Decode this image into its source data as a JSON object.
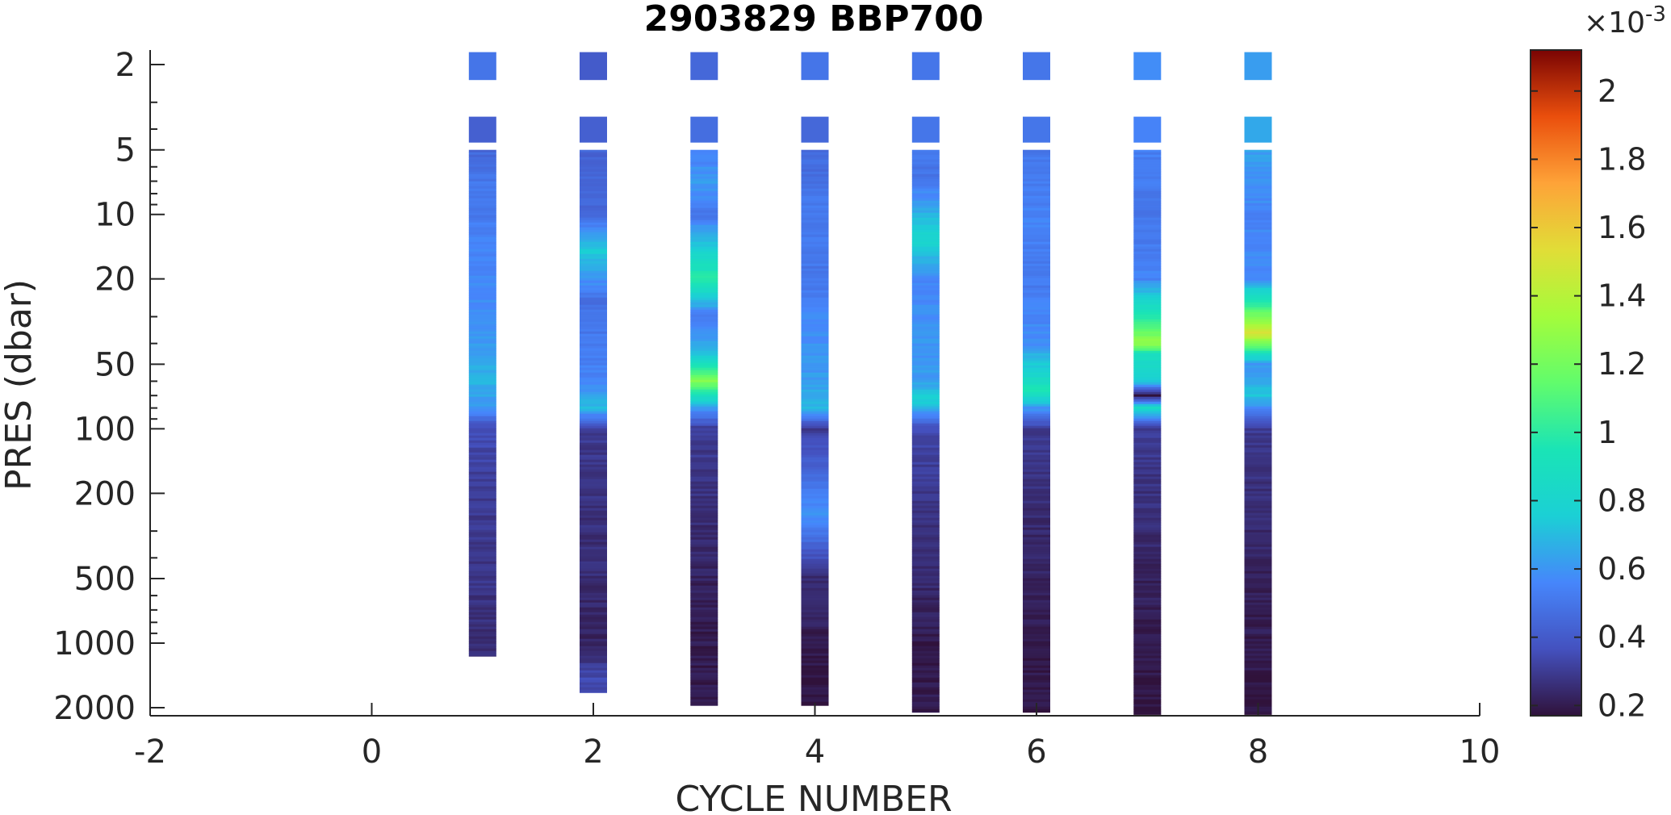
{
  "chart_data": {
    "type": "heatmap",
    "title": "2903829 BBP700",
    "xlabel": "CYCLE NUMBER",
    "ylabel": "PRES (dbar)",
    "xlim": [
      -2,
      10
    ],
    "ylim": [
      2,
      2000
    ],
    "yscale": "log",
    "yreverse": true,
    "x_ticks": [
      "-2",
      "0",
      "2",
      "4",
      "6",
      "8",
      "10"
    ],
    "y_ticks": [
      "2",
      "5",
      "10",
      "20",
      "50",
      "100",
      "200",
      "500",
      "1000",
      "2000"
    ],
    "colorbar": {
      "colormap": "turbo",
      "range": [
        0.00017,
        0.00212
      ],
      "multiplier": "×10",
      "multiplier_exp": "-3",
      "ticks": [
        "0.2",
        "0.4",
        "0.6",
        "0.8",
        "1",
        "1.2",
        "1.4",
        "1.6",
        "1.8",
        "2"
      ]
    },
    "grid": false,
    "profiles": [
      {
        "cycle": 1,
        "p_max": 1150,
        "points": [
          [
            2,
            0.5
          ],
          [
            4,
            0.42
          ],
          [
            7,
            0.5
          ],
          [
            10,
            0.52
          ],
          [
            15,
            0.55
          ],
          [
            25,
            0.58
          ],
          [
            40,
            0.62
          ],
          [
            60,
            0.68
          ],
          [
            80,
            0.6
          ],
          [
            100,
            0.35
          ],
          [
            200,
            0.3
          ],
          [
            500,
            0.28
          ],
          [
            1000,
            0.25
          ]
        ]
      },
      {
        "cycle": 2,
        "p_max": 1700,
        "points": [
          [
            2,
            0.4
          ],
          [
            4,
            0.42
          ],
          [
            7,
            0.45
          ],
          [
            10,
            0.45
          ],
          [
            15,
            0.75
          ],
          [
            25,
            0.48
          ],
          [
            40,
            0.52
          ],
          [
            60,
            0.55
          ],
          [
            80,
            0.7
          ],
          [
            100,
            0.3
          ],
          [
            200,
            0.27
          ],
          [
            500,
            0.25
          ],
          [
            1000,
            0.22
          ],
          [
            1500,
            0.35
          ]
        ]
      },
      {
        "cycle": 3,
        "p_max": 1950,
        "points": [
          [
            2,
            0.45
          ],
          [
            4,
            0.47
          ],
          [
            7,
            0.62
          ],
          [
            10,
            0.5
          ],
          [
            20,
            1.0
          ],
          [
            30,
            0.5
          ],
          [
            45,
            0.72
          ],
          [
            60,
            1.25
          ],
          [
            80,
            0.62
          ],
          [
            100,
            0.3
          ],
          [
            200,
            0.27
          ],
          [
            500,
            0.22
          ],
          [
            1000,
            0.2
          ],
          [
            1800,
            0.2
          ]
        ]
      },
      {
        "cycle": 4,
        "p_max": 1950,
        "points": [
          [
            2,
            0.5
          ],
          [
            4,
            0.45
          ],
          [
            7,
            0.48
          ],
          [
            10,
            0.52
          ],
          [
            20,
            0.5
          ],
          [
            35,
            0.58
          ],
          [
            60,
            0.62
          ],
          [
            80,
            0.7
          ],
          [
            100,
            0.3
          ],
          [
            250,
            0.6
          ],
          [
            500,
            0.25
          ],
          [
            1000,
            0.2
          ],
          [
            1800,
            0.18
          ]
        ]
      },
      {
        "cycle": 5,
        "p_max": 2100,
        "points": [
          [
            2,
            0.5
          ],
          [
            4,
            0.5
          ],
          [
            7,
            0.5
          ],
          [
            13,
            0.82
          ],
          [
            20,
            0.55
          ],
          [
            40,
            0.6
          ],
          [
            60,
            0.62
          ],
          [
            75,
            0.78
          ],
          [
            100,
            0.35
          ],
          [
            200,
            0.28
          ],
          [
            500,
            0.24
          ],
          [
            1000,
            0.2
          ],
          [
            2000,
            0.2
          ]
        ]
      },
      {
        "cycle": 6,
        "p_max": 2100,
        "points": [
          [
            2,
            0.5
          ],
          [
            4,
            0.5
          ],
          [
            7,
            0.52
          ],
          [
            10,
            0.55
          ],
          [
            20,
            0.52
          ],
          [
            40,
            0.58
          ],
          [
            67,
            0.95
          ],
          [
            80,
            0.6
          ],
          [
            100,
            0.3
          ],
          [
            200,
            0.26
          ],
          [
            500,
            0.22
          ],
          [
            1000,
            0.2
          ],
          [
            2000,
            0.18
          ]
        ]
      },
      {
        "cycle": 7,
        "p_max": 2150,
        "points": [
          [
            2,
            0.58
          ],
          [
            4,
            0.55
          ],
          [
            7,
            0.52
          ],
          [
            10,
            0.5
          ],
          [
            20,
            0.55
          ],
          [
            40,
            1.3
          ],
          [
            45,
            0.9
          ],
          [
            60,
            0.75
          ],
          [
            70,
            0.17
          ],
          [
            80,
            0.85
          ],
          [
            100,
            0.3
          ],
          [
            200,
            0.27
          ],
          [
            500,
            0.22
          ],
          [
            1000,
            0.2
          ],
          [
            2000,
            0.18
          ]
        ]
      },
      {
        "cycle": 8,
        "p_max": 2150,
        "points": [
          [
            2,
            0.62
          ],
          [
            4,
            0.65
          ],
          [
            7,
            0.6
          ],
          [
            10,
            0.55
          ],
          [
            20,
            0.58
          ],
          [
            36,
            1.5
          ],
          [
            50,
            0.6
          ],
          [
            70,
            0.72
          ],
          [
            100,
            0.3
          ],
          [
            200,
            0.26
          ],
          [
            500,
            0.22
          ],
          [
            1000,
            0.2
          ],
          [
            2000,
            0.18
          ]
        ]
      }
    ]
  }
}
